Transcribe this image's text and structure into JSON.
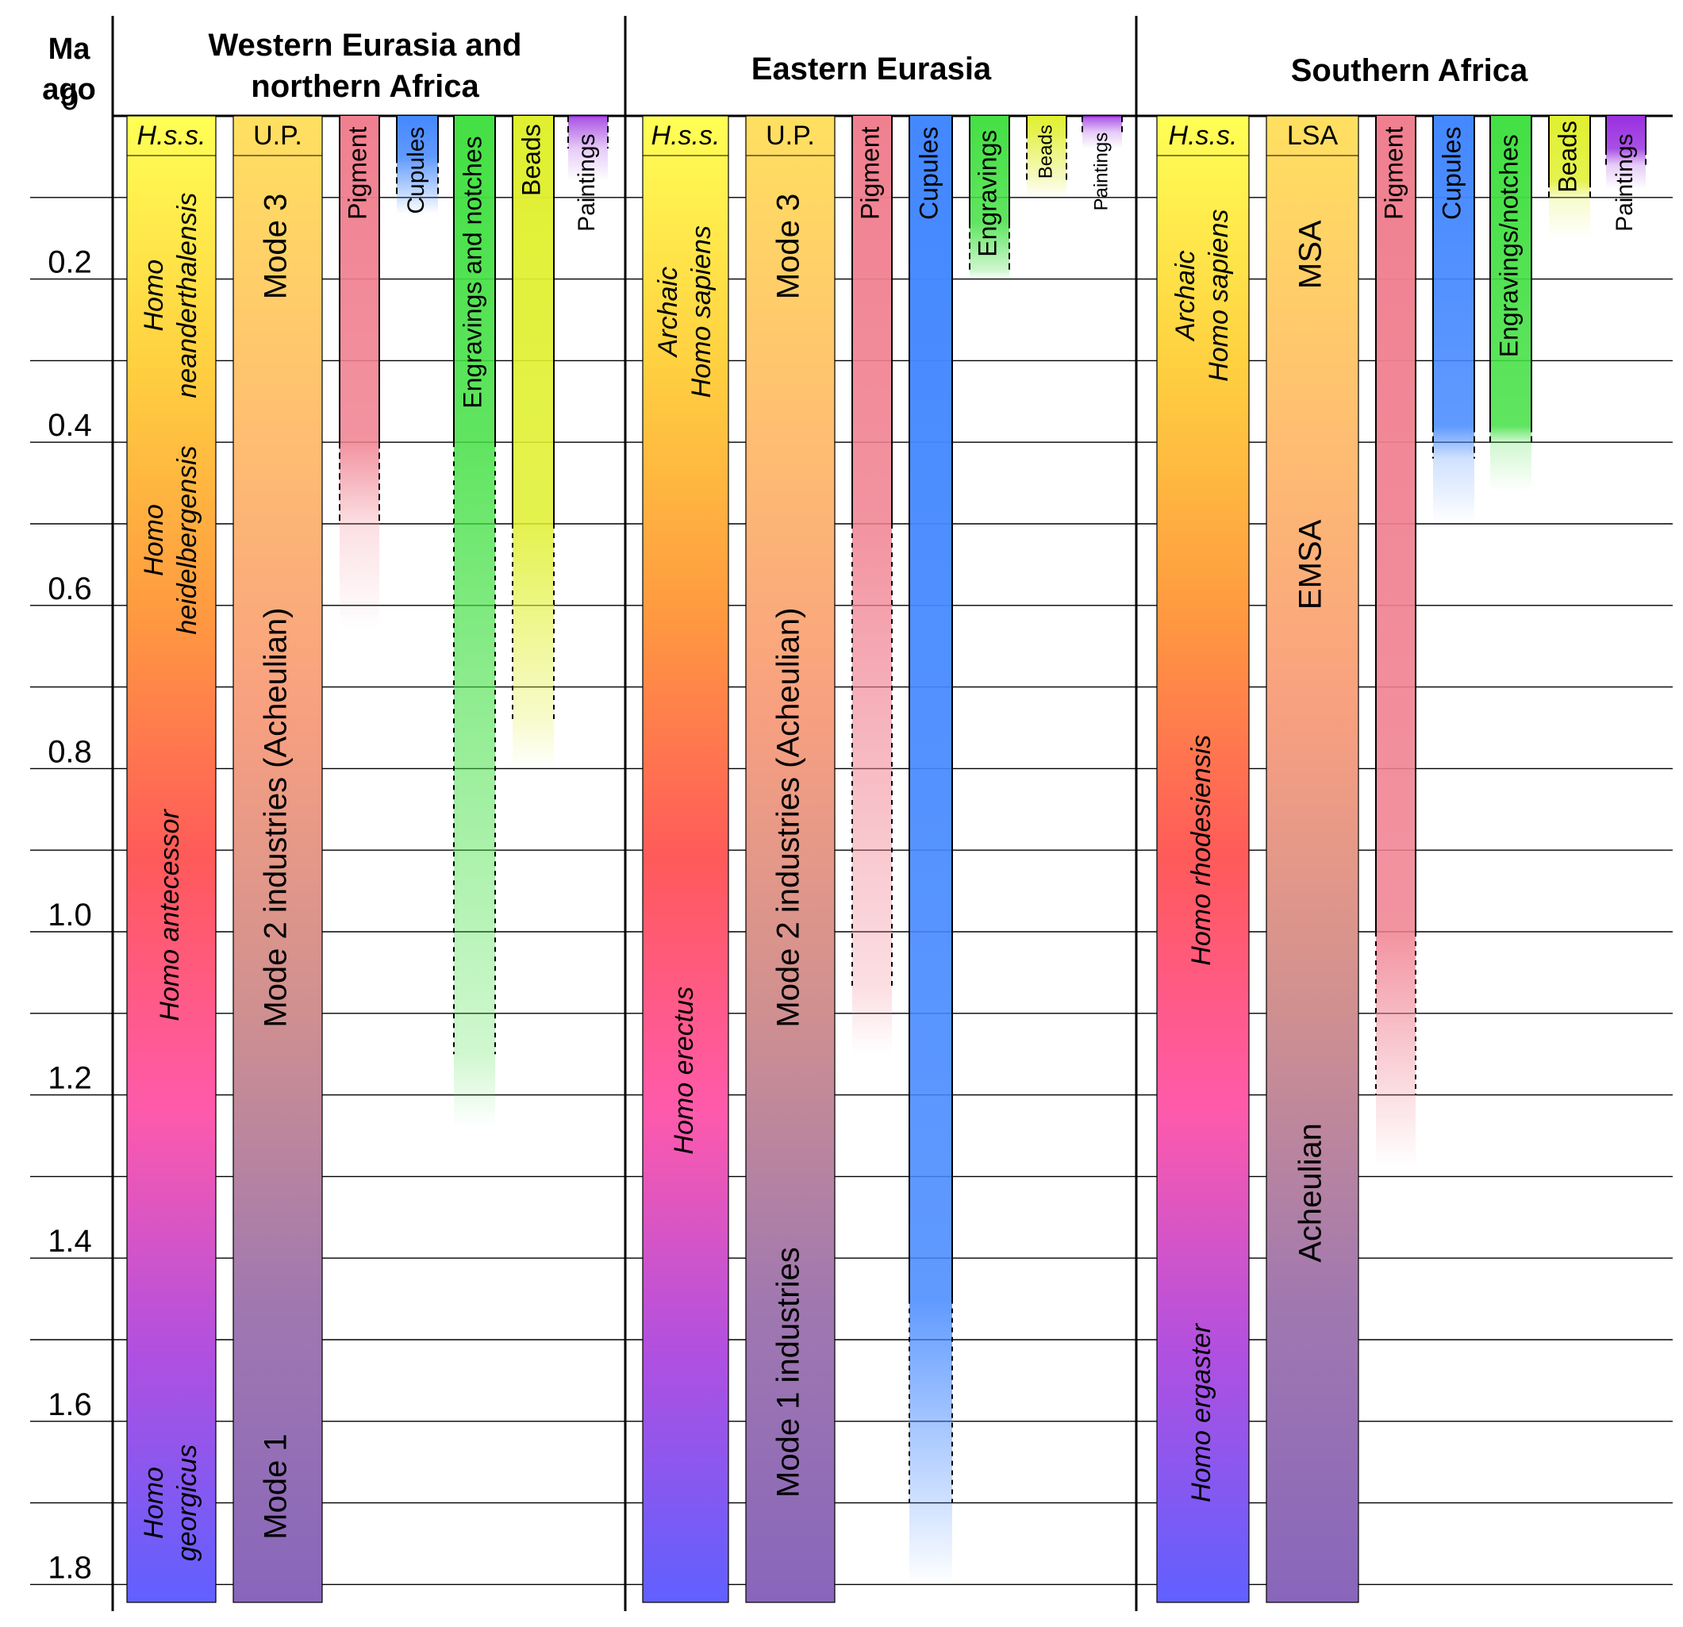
{
  "header": {
    "axis_title_line1": "Ma",
    "axis_title_line2": "ago",
    "regions": [
      {
        "id": "west",
        "lines": [
          "Western Eurasia and",
          "northern Africa"
        ]
      },
      {
        "id": "east",
        "lines": [
          "Eastern Eurasia"
        ]
      },
      {
        "id": "south",
        "lines": [
          "Southern Africa"
        ]
      }
    ]
  },
  "chart_data": {
    "type": "timeline",
    "title": "",
    "ylabel": "Ma ago",
    "ylim": [
      0,
      1.82
    ],
    "ticks": [
      {
        "value": 0,
        "label": "0"
      },
      {
        "value": 0.2,
        "label": "0.2"
      },
      {
        "value": 0.4,
        "label": "0.4"
      },
      {
        "value": 0.6,
        "label": "0.6"
      },
      {
        "value": 0.8,
        "label": "0.8"
      },
      {
        "value": 1.0,
        "label": "1.0"
      },
      {
        "value": 1.2,
        "label": "1.2"
      },
      {
        "value": 1.4,
        "label": "1.4"
      },
      {
        "value": 1.6,
        "label": "1.6"
      },
      {
        "value": 1.8,
        "label": "1.8"
      }
    ],
    "gridlines_ma": [
      0.1,
      0.2,
      0.3,
      0.4,
      0.5,
      0.6,
      0.7,
      0.8,
      0.9,
      1.0,
      1.1,
      1.2,
      1.3,
      1.4,
      1.5,
      1.6,
      1.7,
      1.8
    ],
    "colors": {
      "hominin_gradient": [
        "#ffff55",
        "#ffd040",
        "#ff9a40",
        "#ff5a5a",
        "#ff5aaa",
        "#b050e0",
        "#6060ff"
      ],
      "industry_gradient": [
        "#ffe060",
        "#ffc070",
        "#f8a080",
        "#d09090",
        "#a078b0",
        "#8866bb"
      ],
      "pigment": "#f08090",
      "cupules": "#4488ff",
      "engravings": "#44e044",
      "beads": "#e0f030",
      "paintings": "#9a30e0"
    },
    "regions": [
      {
        "id": "west",
        "hominins": [
          {
            "label": "H.s.s.",
            "start": 0,
            "end": 0.05
          },
          {
            "label": [
              "Homo",
              "neanderthalensis"
            ],
            "center": 0.22
          },
          {
            "label": [
              "Homo",
              "heidelbergensis"
            ],
            "center": 0.52
          },
          {
            "label": [
              "Homo antecessor"
            ],
            "center": 0.98
          },
          {
            "label": [
              "Homo",
              "georgicus"
            ],
            "center": 1.7
          }
        ],
        "industries": [
          {
            "label": "U.P.",
            "center": 0.025
          },
          {
            "label": "Mode 3",
            "center": 0.16
          },
          {
            "label": "Mode 2 industries (Acheulian)",
            "center": 0.86
          },
          {
            "label": "Mode 1",
            "center": 1.68
          }
        ],
        "behaviors": [
          {
            "label": "Pigment",
            "type": "pigment",
            "solid_end": 0.4,
            "dashed_end": 0.5,
            "fade_end": 0.63
          },
          {
            "label": "Cupules",
            "type": "cupules",
            "solid_end": 0.05,
            "dashed_end": 0.1,
            "fade_end": 0.12
          },
          {
            "label": "Engravings and notches",
            "type": "engravings",
            "solid_end": 0.4,
            "dashed_end": 1.15,
            "fade_end": 1.24
          },
          {
            "label": "Beads",
            "type": "beads",
            "solid_end": 0.5,
            "dashed_end": 0.74,
            "fade_end": 0.8
          },
          {
            "label": "Paintings",
            "type": "paintings",
            "solid_end": 0.0,
            "dashed_end": 0.04,
            "fade_end": 0.08
          }
        ]
      },
      {
        "id": "east",
        "hominins": [
          {
            "label": "H.s.s.",
            "start": 0,
            "end": 0.05
          },
          {
            "label": [
              "Archaic",
              "Homo sapiens"
            ],
            "center": 0.24
          },
          {
            "label": [
              "Homo erectus"
            ],
            "center": 1.17
          }
        ],
        "industries": [
          {
            "label": "U.P.",
            "center": 0.025
          },
          {
            "label": "Mode 3",
            "center": 0.16
          },
          {
            "label": "Mode 2 industries (Acheulian)",
            "center": 0.86
          },
          {
            "label": "Mode 1 industries",
            "center": 1.54
          }
        ],
        "behaviors": [
          {
            "label": "Pigment",
            "type": "pigment",
            "solid_end": 0.5,
            "dashed_end": 1.07,
            "fade_end": 1.15
          },
          {
            "label": "Cupules",
            "type": "cupules",
            "solid_end": 1.45,
            "dashed_end": 1.7,
            "fade_end": 1.8
          },
          {
            "label": "Engravings",
            "type": "engravings",
            "solid_end": 0.13,
            "dashed_end": 0.19,
            "fade_end": 0.2
          },
          {
            "label": "Beads",
            "type": "beads",
            "solid_end": 0.02,
            "dashed_end": 0.08,
            "fade_end": 0.1
          },
          {
            "label": "Paintings",
            "type": "paintings",
            "solid_end": 0.0,
            "dashed_end": 0.02,
            "fade_end": 0.04
          }
        ]
      },
      {
        "id": "south",
        "hominins": [
          {
            "label": "H.s.s.",
            "start": 0,
            "end": 0.05
          },
          {
            "label": [
              "Archaic",
              "Homo sapiens"
            ],
            "center": 0.22
          },
          {
            "label": [
              "Homo rhodesiensis"
            ],
            "center": 0.9
          },
          {
            "label": [
              "Homo ergaster"
            ],
            "center": 1.59
          }
        ],
        "industries": [
          {
            "label": "LSA",
            "center": 0.025
          },
          {
            "label": "MSA",
            "center": 0.17
          },
          {
            "label": "EMSA",
            "center": 0.55
          },
          {
            "label": "Acheulian",
            "center": 1.32
          }
        ],
        "behaviors": [
          {
            "label": "Pigment",
            "type": "pigment",
            "solid_end": 1.0,
            "dashed_end": 1.2,
            "fade_end": 1.29
          },
          {
            "label": "Cupules",
            "type": "cupules",
            "solid_end": 0.38,
            "dashed_end": 0.42,
            "fade_end": 0.5
          },
          {
            "label": "Engravings/notches",
            "type": "engravings",
            "solid_end": 0.38,
            "dashed_end": 0.4,
            "fade_end": 0.46
          },
          {
            "label": "Beads",
            "type": "beads",
            "solid_end": 0.08,
            "dashed_end": 0.1,
            "fade_end": 0.15
          },
          {
            "label": "Paintings",
            "type": "paintings",
            "solid_end": 0.04,
            "dashed_end": 0.06,
            "fade_end": 0.09
          }
        ]
      }
    ]
  }
}
